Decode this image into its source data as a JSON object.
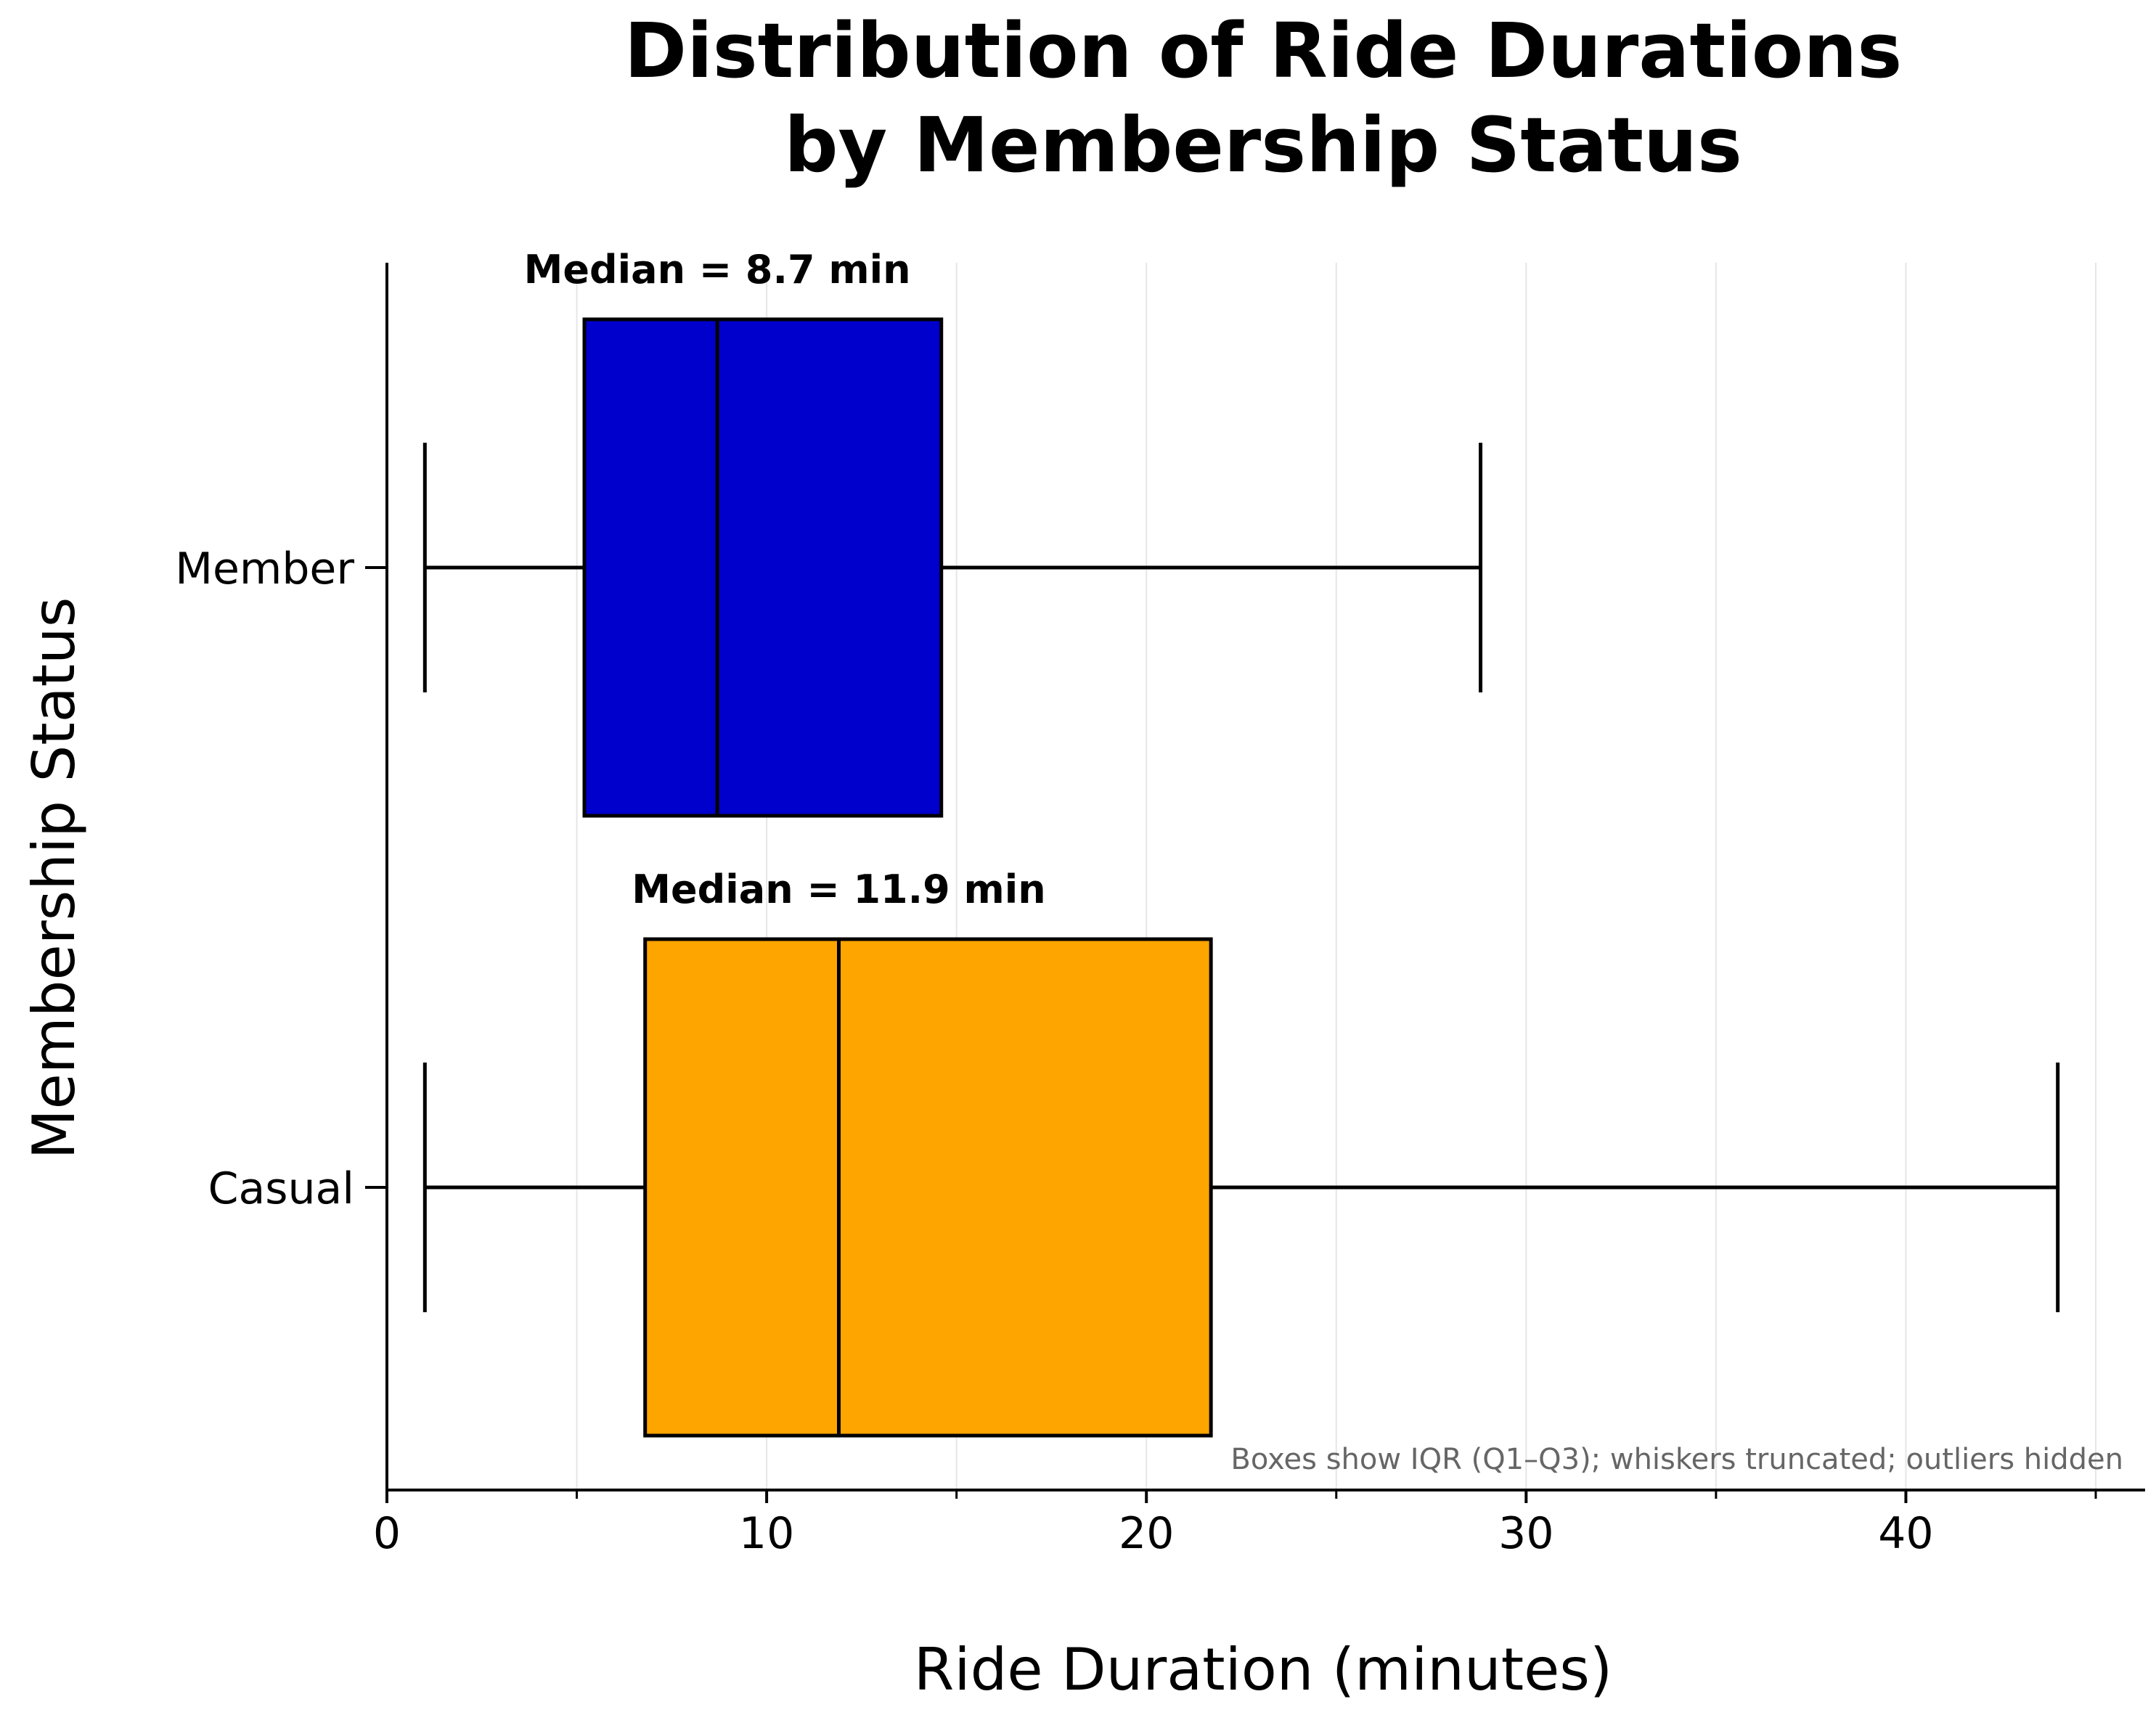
{
  "chart_data": {
    "type": "boxplot",
    "orientation": "horizontal",
    "title": "Distribution of Ride Durations\nby Membership Status",
    "title_lines": [
      "Distribution of Ride Durations",
      "by Membership Status"
    ],
    "xlabel": "Ride Duration (minutes)",
    "ylabel": "Membership Status",
    "xlim": [
      0,
      46.3
    ],
    "x_ticks": [
      0,
      10,
      20,
      30,
      40
    ],
    "x_minor_ticks": [
      5,
      15,
      25,
      35,
      45
    ],
    "grid": "vertical",
    "categories": [
      "Member",
      "Casual"
    ],
    "series": [
      {
        "name": "Member",
        "whisker_low": 1.0,
        "q1": 5.2,
        "median": 8.7,
        "q3": 14.6,
        "whisker_high": 28.8,
        "color": "#0000CD",
        "annotation": "Median = 8.7 min"
      },
      {
        "name": "Casual",
        "whisker_low": 1.0,
        "q1": 6.8,
        "median": 11.9,
        "q3": 21.7,
        "whisker_high": 44.0,
        "color": "#FFA500",
        "annotation": "Median = 11.9 min"
      }
    ],
    "footnote": "Boxes show IQR (Q1–Q3); whiskers truncated; outliers hidden",
    "colors": {
      "axis": "#000000",
      "grid": "#e6e6e6",
      "footnote": "#666666"
    }
  }
}
